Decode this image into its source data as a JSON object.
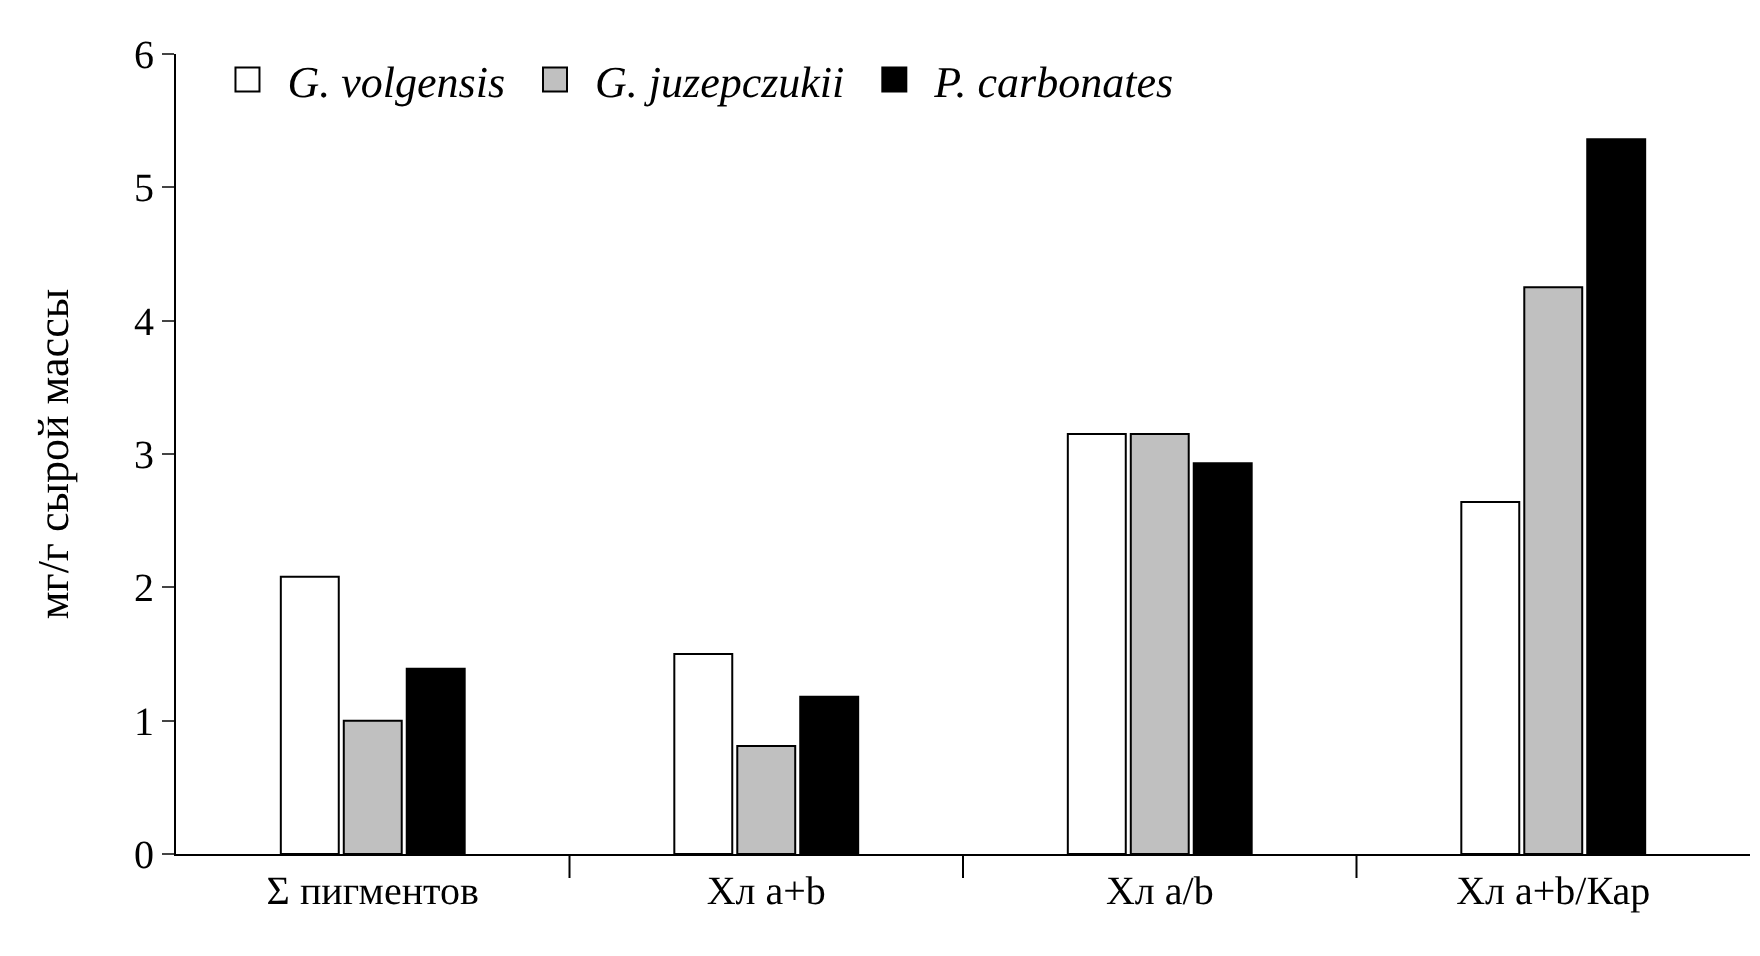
{
  "chart_data": {
    "type": "bar",
    "ylabel": "мг/г сырой массы",
    "categories": [
      "Σ пигментов",
      "Хл a+b",
      "Хл a/b",
      "Хл a+b/Кар"
    ],
    "series": [
      {
        "name": "G. volgensis",
        "color": "#ffffff",
        "values": [
          2.08,
          1.5,
          3.15,
          2.64
        ]
      },
      {
        "name": "G. juzepczukii",
        "color": "#c0c0c0",
        "values": [
          1.0,
          0.81,
          3.15,
          4.25
        ]
      },
      {
        "name": "P. carbonates",
        "color": "#000000",
        "values": [
          1.39,
          1.18,
          2.93,
          5.36
        ]
      }
    ],
    "ylim": [
      0,
      6
    ],
    "yticks": [
      0,
      1,
      2,
      3,
      4,
      5,
      6
    ],
    "grid": false,
    "legend": "top left"
  }
}
